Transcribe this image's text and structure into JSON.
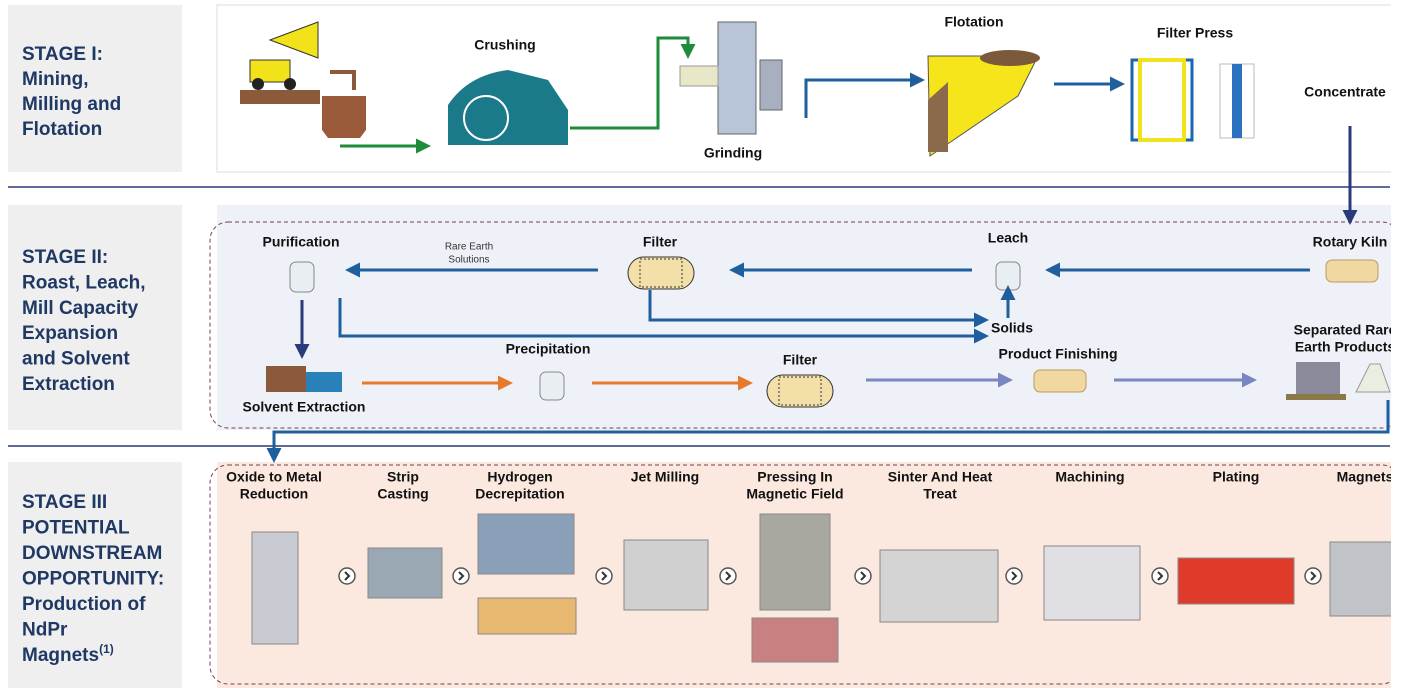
{
  "stages": [
    {
      "title_lines": [
        "STAGE I:",
        "Mining,",
        "Milling and",
        "Flotation"
      ],
      "steps": [
        {
          "lines": [
            "Crushing"
          ]
        },
        {
          "lines": [
            "Grinding"
          ]
        },
        {
          "lines": [
            "Flotation"
          ]
        },
        {
          "lines": [
            "Filter Press"
          ]
        },
        {
          "lines": [
            "Concentrate"
          ]
        }
      ]
    },
    {
      "title_lines": [
        "STAGE II:",
        "Roast, Leach,",
        "Mill Capacity",
        "Expansion",
        "and Solvent",
        "Extraction"
      ],
      "annotation_lines": [
        "Rare Earth",
        "Solutions"
      ],
      "steps": [
        {
          "lines": [
            "Purification"
          ]
        },
        {
          "lines": [
            "Filter"
          ]
        },
        {
          "lines": [
            "Leach"
          ]
        },
        {
          "lines": [
            "Rotary Kiln"
          ]
        },
        {
          "lines": [
            "Solids"
          ]
        },
        {
          "lines": [
            "Solvent Extraction"
          ]
        },
        {
          "lines": [
            "Precipitation"
          ]
        },
        {
          "lines": [
            "Filter"
          ]
        },
        {
          "lines": [
            "Product Finishing"
          ]
        },
        {
          "lines": [
            "Separated Rare",
            "Earth Products"
          ]
        }
      ]
    },
    {
      "title_lines": [
        "STAGE III",
        "POTENTIAL",
        "DOWNSTREAM",
        "OPPORTUNITY:",
        "Production of",
        "NdPr",
        "Magnets"
      ],
      "footnote": "(1)",
      "steps": [
        {
          "lines": [
            "Oxide to Metal",
            "Reduction"
          ]
        },
        {
          "lines": [
            "Strip",
            "Casting"
          ]
        },
        {
          "lines": [
            "Hydrogen",
            "Decrepitation"
          ]
        },
        {
          "lines": [
            "Jet Milling"
          ]
        },
        {
          "lines": [
            "Pressing In",
            "Magnetic Field"
          ]
        },
        {
          "lines": [
            "Sinter And Heat",
            "Treat"
          ]
        },
        {
          "lines": [
            "Machining"
          ]
        },
        {
          "lines": [
            "Plating"
          ]
        },
        {
          "lines": [
            "Magnets"
          ]
        }
      ]
    }
  ]
}
